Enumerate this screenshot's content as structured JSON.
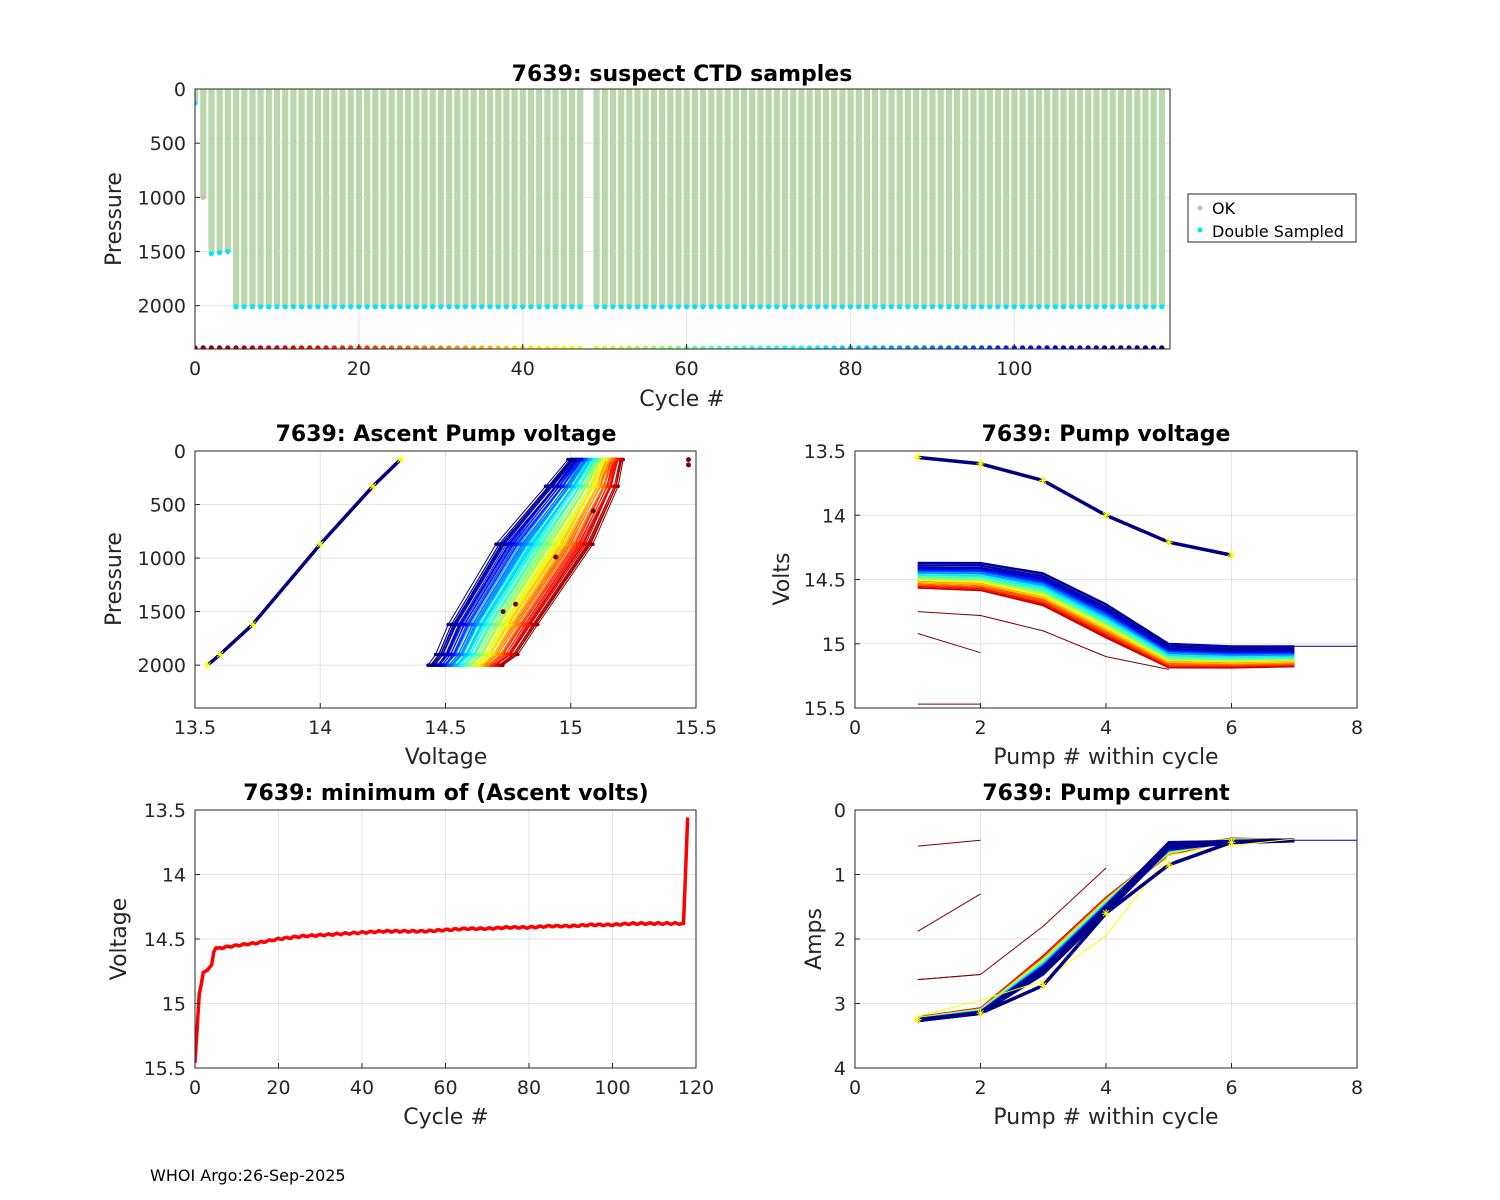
{
  "footer": "WHOI Argo:26-Sep-2025",
  "chart_data": [
    {
      "id": "ctd",
      "type": "scatter",
      "title": "7639: suspect CTD samples",
      "xlabel": "Cycle #",
      "ylabel": "Pressure",
      "xlim": [
        0,
        119
      ],
      "ylim": [
        2400,
        0
      ],
      "xticks": [
        0,
        20,
        40,
        60,
        80,
        100
      ],
      "yticks": [
        0,
        500,
        1000,
        1500,
        2000
      ],
      "legend": {
        "position": "right",
        "entries": [
          {
            "label": "OK",
            "color": "#bfbfbf"
          },
          {
            "label": "Double Sampled",
            "color": "#00e5ff"
          }
        ]
      },
      "max_pressure": [
        {
          "cycle": 0,
          "p": 130
        },
        {
          "cycle": 1,
          "p": 1000
        },
        {
          "cycle": 2,
          "p": 1520
        },
        {
          "cycle": 3,
          "p": 1510
        },
        {
          "cycle": 4,
          "p": 1500
        },
        {
          "cycle": 5,
          "p": 2010
        }
      ],
      "missing_cycles": [
        48
      ],
      "default_max_pressure": 2010,
      "cycle_axis_marker_pressure": 2390,
      "colors": {
        "profile": "#b9d9ad",
        "ok": "#bfbfbf",
        "double": "#00e5ff"
      }
    },
    {
      "id": "ascent",
      "type": "line",
      "title": "7639: Ascent Pump voltage",
      "xlabel": "Voltage",
      "ylabel": "Pressure",
      "xlim": [
        13.5,
        15.5
      ],
      "ylim": [
        2400,
        0
      ],
      "xticks": [
        13.5,
        14,
        14.5,
        15,
        15.5
      ],
      "yticks": [
        0,
        500,
        1000,
        1500,
        2000
      ],
      "pressures": [
        2000,
        1900,
        1620,
        870,
        330,
        80
      ],
      "early_red_curve": [
        14.72,
        14.78,
        14.86,
        15.08,
        15.18,
        15.2
      ],
      "late_blue_curve": [
        14.44,
        14.47,
        14.52,
        14.71,
        14.91,
        15.0
      ],
      "final_cycle_curve": [
        13.55,
        13.6,
        13.73,
        14.0,
        14.21,
        14.32
      ],
      "outliers": [
        {
          "v": 15.47,
          "p": 80
        },
        {
          "v": 15.47,
          "p": 130
        },
        {
          "v": 14.73,
          "p": 1500
        },
        {
          "v": 14.78,
          "p": 1430
        },
        {
          "v": 14.94,
          "p": 990
        },
        {
          "v": 15.09,
          "p": 560
        }
      ]
    },
    {
      "id": "pumpv",
      "type": "line",
      "title": "7639: Pump voltage",
      "xlabel": "Pump # within cycle",
      "ylabel": "Volts",
      "xlim": [
        0,
        8
      ],
      "ylim": [
        13.5,
        15.5
      ],
      "xticks": [
        0,
        2,
        4,
        6,
        8
      ],
      "yticks": [
        13.5,
        14,
        14.5,
        15,
        15.5
      ],
      "pump_numbers": [
        1,
        2,
        3,
        4,
        5,
        6,
        7
      ],
      "early_red_curve": [
        14.56,
        14.58,
        14.7,
        14.95,
        15.18,
        15.18,
        15.17
      ],
      "late_blue_curve": [
        14.38,
        14.38,
        14.46,
        14.7,
        15.01,
        15.03,
        15.03
      ],
      "final_cycle_curve": [
        13.55,
        13.6,
        13.73,
        14.0,
        14.21,
        14.31
      ],
      "early_outliers": [
        {
          "x": [
            1,
            2
          ],
          "y": [
            15.47,
            15.47
          ]
        },
        {
          "x": [
            1,
            2
          ],
          "y": [
            14.92,
            15.07
          ]
        },
        {
          "x": [
            1,
            2,
            3,
            4,
            5
          ],
          "y": [
            14.75,
            14.78,
            14.9,
            15.1,
            15.2
          ]
        }
      ],
      "tail": {
        "x": [
          7,
          8
        ],
        "y": [
          15.02,
          15.02
        ]
      }
    },
    {
      "id": "minv",
      "type": "line",
      "title": "7639: minimum of (Ascent volts)",
      "xlabel": "Cycle #",
      "ylabel": "Voltage",
      "xlim": [
        0,
        120
      ],
      "ylim": [
        13.5,
        15.5
      ],
      "xticks": [
        0,
        20,
        40,
        60,
        80,
        100,
        120
      ],
      "yticks": [
        13.5,
        14,
        14.5,
        15,
        15.5
      ],
      "series": {
        "name": "min ascent volts",
        "color": "#ff0000",
        "cycle": [
          0,
          0.5,
          1,
          1.5,
          2,
          2.5,
          3,
          3.5,
          4,
          4.5,
          5,
          6,
          8,
          10,
          15,
          20,
          25,
          30,
          35,
          40,
          45,
          50,
          55,
          60,
          65,
          70,
          75,
          80,
          85,
          90,
          95,
          100,
          105,
          110,
          115,
          117,
          118
        ],
        "volts": [
          15.45,
          15.2,
          14.93,
          14.85,
          14.76,
          14.75,
          14.74,
          14.72,
          14.7,
          14.6,
          14.57,
          14.57,
          14.56,
          14.55,
          14.53,
          14.5,
          14.48,
          14.47,
          14.46,
          14.45,
          14.44,
          14.44,
          14.44,
          14.43,
          14.42,
          14.42,
          14.41,
          14.41,
          14.4,
          14.4,
          14.39,
          14.39,
          14.38,
          14.38,
          14.38,
          14.38,
          13.57
        ]
      }
    },
    {
      "id": "pumpc",
      "type": "line",
      "title": "7639: Pump current",
      "xlabel": "Pump # within cycle",
      "ylabel": "Amps",
      "xlim": [
        0,
        8
      ],
      "ylim": [
        0,
        4
      ],
      "xticks": [
        0,
        2,
        4,
        6,
        8
      ],
      "yticks": [
        0,
        1,
        2,
        3,
        4
      ],
      "pump_numbers": [
        1,
        2,
        3,
        4,
        5,
        6,
        7
      ],
      "early_red_curve": [
        3.22,
        3.08,
        2.3,
        1.4,
        0.65,
        0.45,
        0.47
      ],
      "late_blue_curve": [
        3.26,
        3.15,
        2.5,
        1.55,
        0.55,
        0.5,
        0.47
      ],
      "final_cycle_curve": [
        3.25,
        3.15,
        2.72,
        1.6,
        0.85,
        0.5
      ],
      "yellow_variant": [
        3.2,
        2.95,
        2.65,
        1.95,
        0.7,
        0.55,
        0.45
      ],
      "early_outliers": [
        {
          "x": [
            1,
            2
          ],
          "y": [
            2.63,
            2.55
          ]
        },
        {
          "x": [
            1,
            2
          ],
          "y": [
            1.88,
            1.3
          ]
        },
        {
          "x": [
            1,
            2
          ],
          "y": [
            0.56,
            0.47
          ]
        },
        {
          "x": [
            1,
            2,
            3,
            4
          ],
          "y": [
            2.63,
            2.55,
            1.8,
            0.9
          ]
        }
      ],
      "tail": {
        "x": [
          7,
          8
        ],
        "y": [
          0.47,
          0.47
        ]
      }
    }
  ]
}
